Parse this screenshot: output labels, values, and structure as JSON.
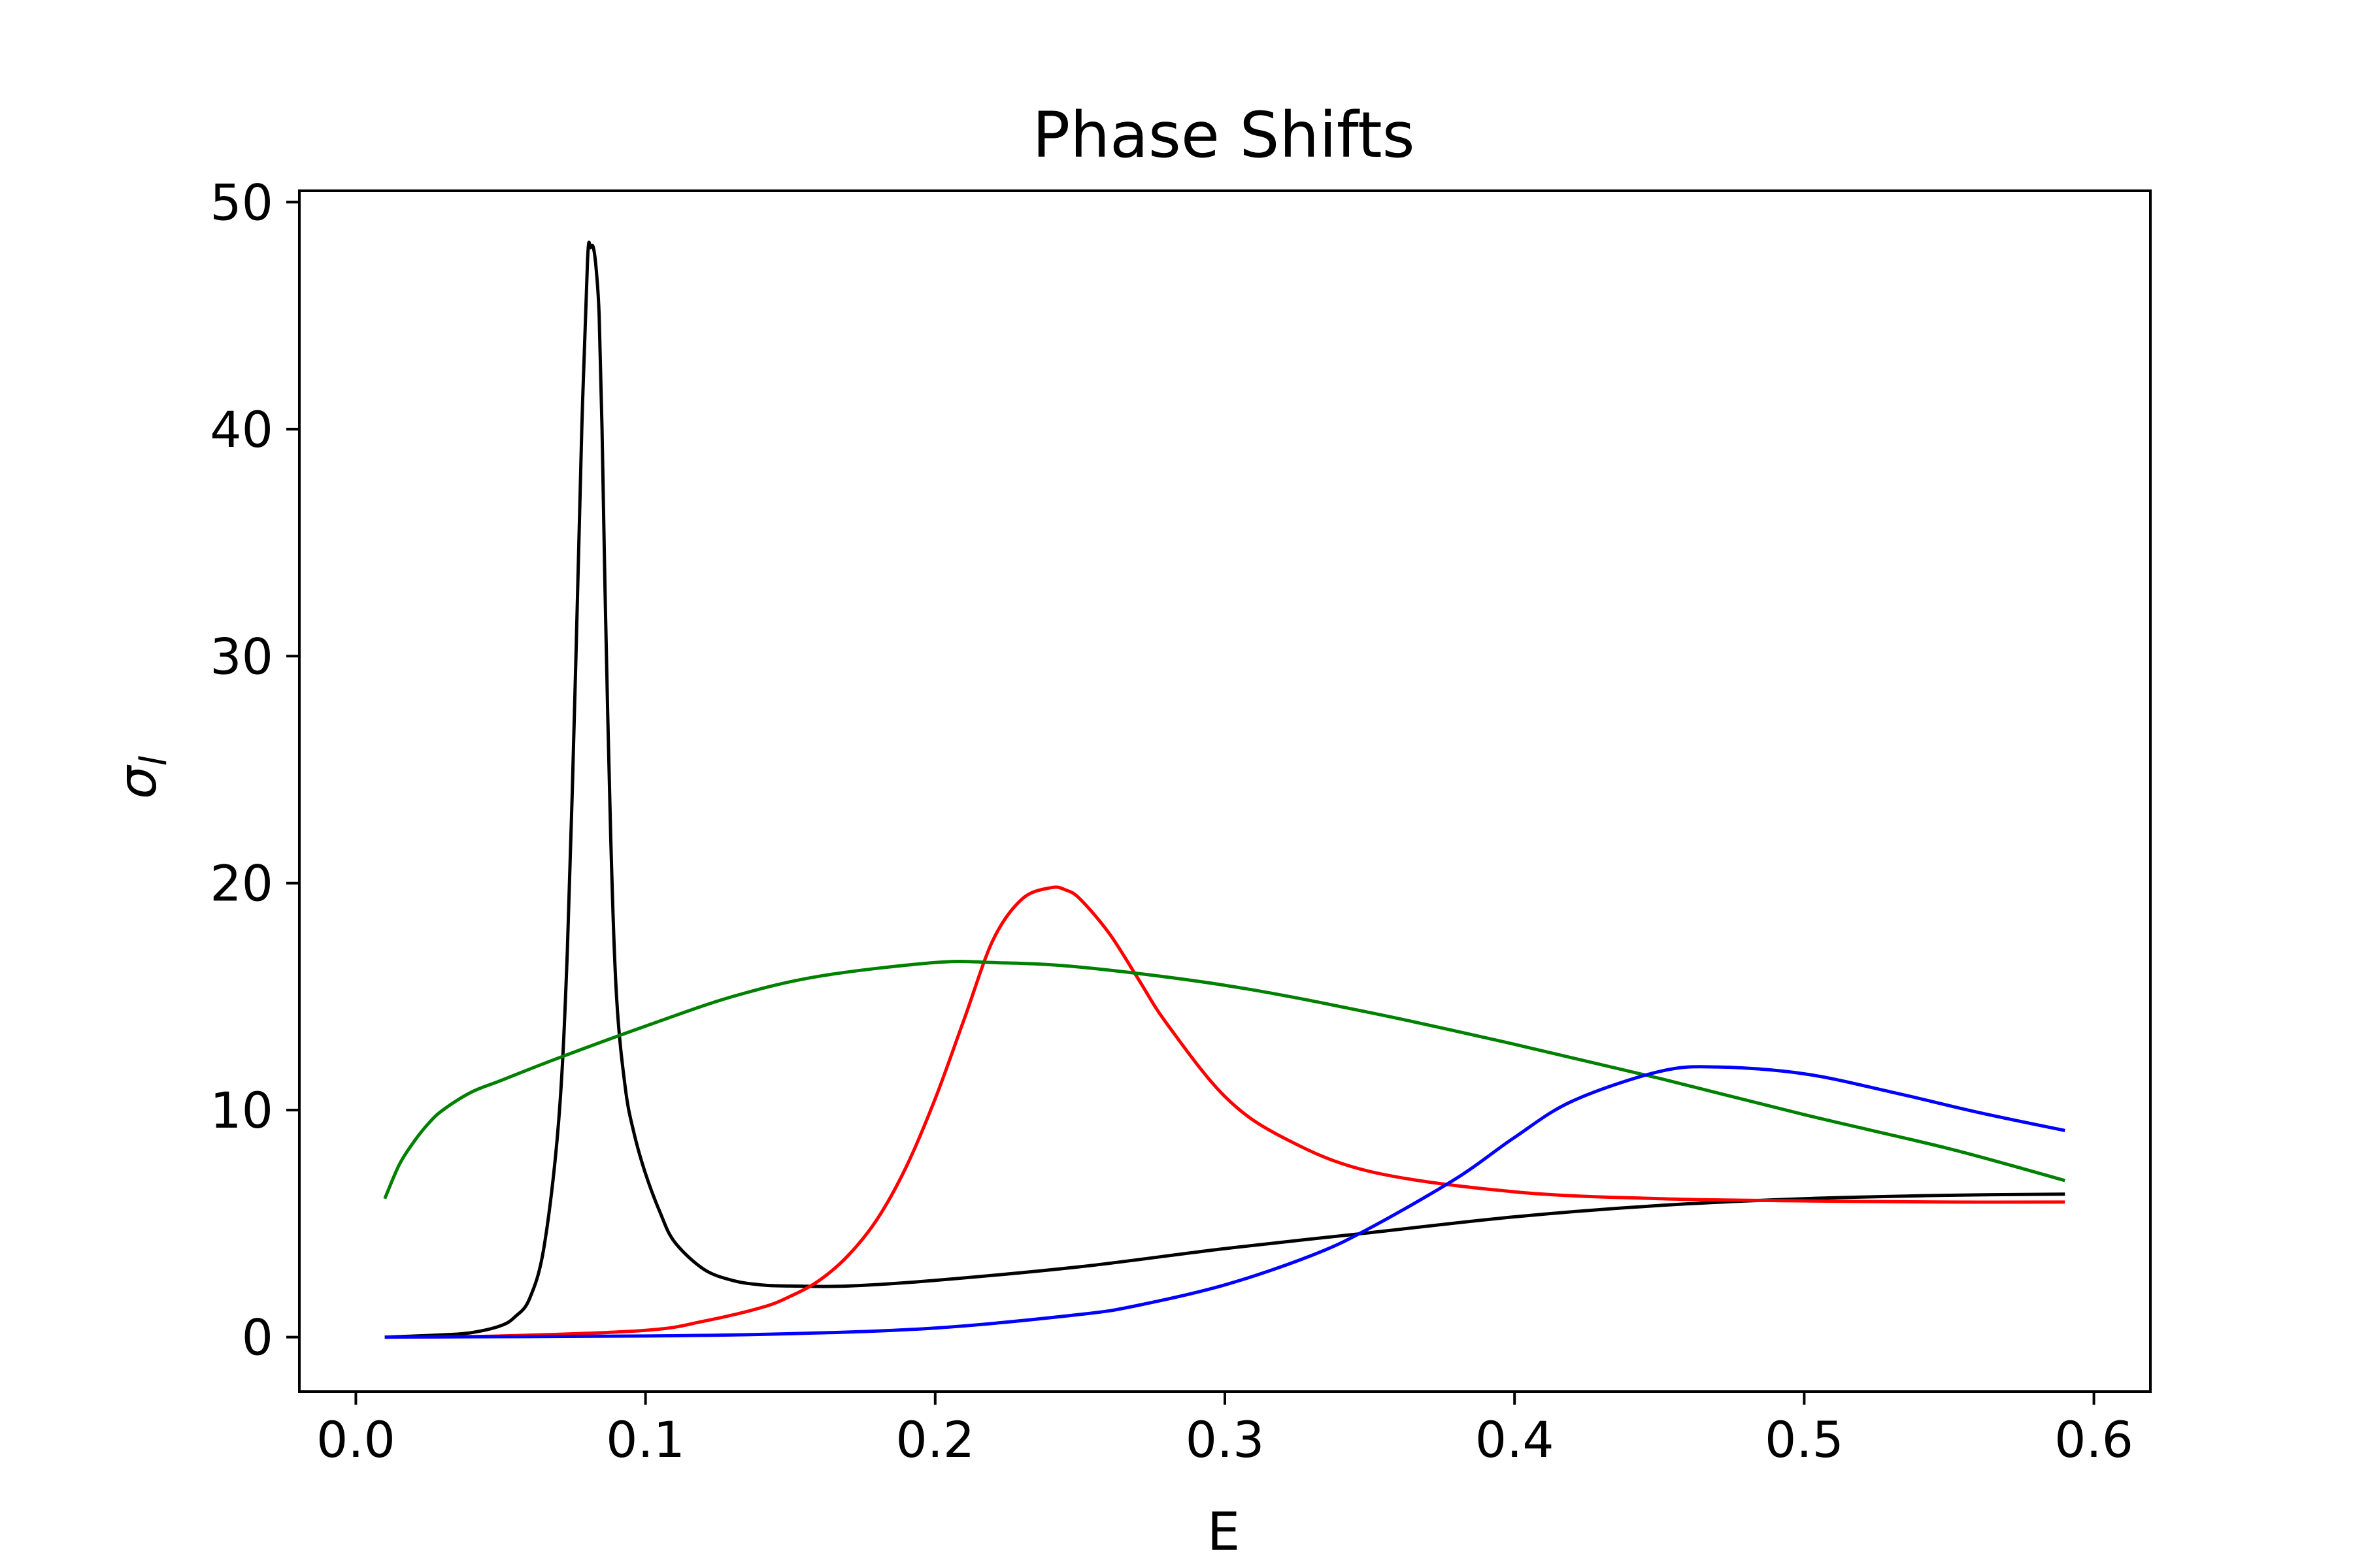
{
  "chart_data": {
    "type": "line",
    "title": "Phase Shifts",
    "xlabel": "E",
    "ylabel": "σ",
    "ylabel_subscript": "l",
    "xlim": [
      -0.0195,
      0.6195
    ],
    "ylim": [
      -2.4,
      50.5
    ],
    "grid": false,
    "x_ticks": [
      {
        "value": 0.0,
        "label": "0.0"
      },
      {
        "value": 0.1,
        "label": "0.1"
      },
      {
        "value": 0.2,
        "label": "0.2"
      },
      {
        "value": 0.3,
        "label": "0.3"
      },
      {
        "value": 0.4,
        "label": "0.4"
      },
      {
        "value": 0.5,
        "label": "0.5"
      },
      {
        "value": 0.6,
        "label": "0.6"
      }
    ],
    "y_ticks": [
      {
        "value": 0,
        "label": "0"
      },
      {
        "value": 10,
        "label": "10"
      },
      {
        "value": 20,
        "label": "20"
      },
      {
        "value": 30,
        "label": "30"
      },
      {
        "value": 40,
        "label": "40"
      },
      {
        "value": 50,
        "label": "50"
      }
    ],
    "series": [
      {
        "color": "#000000",
        "x": [
          0.01,
          0.03,
          0.04,
          0.05,
          0.055,
          0.06,
          0.065,
          0.07,
          0.073,
          0.076,
          0.078,
          0.08,
          0.081,
          0.082,
          0.083,
          0.084,
          0.085,
          0.086,
          0.088,
          0.09,
          0.093,
          0.096,
          0.1,
          0.105,
          0.11,
          0.12,
          0.13,
          0.14,
          0.15,
          0.17,
          0.2,
          0.25,
          0.3,
          0.35,
          0.4,
          0.45,
          0.5,
          0.55,
          0.59
        ],
        "y": [
          0.0,
          0.1,
          0.2,
          0.5,
          0.9,
          1.7,
          4.0,
          9.5,
          17.0,
          30.0,
          40.0,
          47.5,
          48.0,
          48.0,
          47.0,
          45.0,
          40.0,
          33.0,
          22.0,
          15.0,
          11.0,
          9.0,
          7.2,
          5.5,
          4.2,
          3.0,
          2.5,
          2.3,
          2.25,
          2.25,
          2.5,
          3.1,
          3.9,
          4.6,
          5.3,
          5.8,
          6.1,
          6.25,
          6.3
        ]
      },
      {
        "color": "#ff0000",
        "x": [
          0.01,
          0.05,
          0.1,
          0.12,
          0.14,
          0.15,
          0.16,
          0.17,
          0.18,
          0.19,
          0.2,
          0.21,
          0.22,
          0.23,
          0.24,
          0.245,
          0.25,
          0.26,
          0.27,
          0.28,
          0.3,
          0.32,
          0.35,
          0.4,
          0.45,
          0.5,
          0.55,
          0.59
        ],
        "y": [
          0.0,
          0.05,
          0.3,
          0.7,
          1.3,
          1.8,
          2.5,
          3.6,
          5.2,
          7.5,
          10.5,
          14.0,
          17.5,
          19.3,
          19.8,
          19.7,
          19.3,
          17.8,
          15.8,
          13.8,
          10.6,
          8.8,
          7.3,
          6.4,
          6.1,
          6.0,
          5.95,
          5.95
        ]
      },
      {
        "color": "#008000",
        "x": [
          0.01,
          0.015,
          0.02,
          0.025,
          0.03,
          0.04,
          0.05,
          0.07,
          0.1,
          0.13,
          0.16,
          0.2,
          0.22,
          0.25,
          0.3,
          0.35,
          0.4,
          0.45,
          0.5,
          0.55,
          0.59
        ],
        "y": [
          6.1,
          7.6,
          8.6,
          9.4,
          10.0,
          10.8,
          11.3,
          12.3,
          13.7,
          15.0,
          15.9,
          16.5,
          16.5,
          16.3,
          15.5,
          14.3,
          12.9,
          11.4,
          9.8,
          8.3,
          6.9
        ]
      },
      {
        "color": "#0000ff",
        "x": [
          0.01,
          0.1,
          0.15,
          0.2,
          0.25,
          0.27,
          0.3,
          0.33,
          0.35,
          0.38,
          0.4,
          0.42,
          0.45,
          0.47,
          0.5,
          0.53,
          0.56,
          0.59
        ],
        "y": [
          0.0,
          0.05,
          0.15,
          0.4,
          1.0,
          1.4,
          2.3,
          3.6,
          4.8,
          7.0,
          8.8,
          10.4,
          11.7,
          11.9,
          11.6,
          10.8,
          9.9,
          9.1
        ]
      }
    ]
  }
}
